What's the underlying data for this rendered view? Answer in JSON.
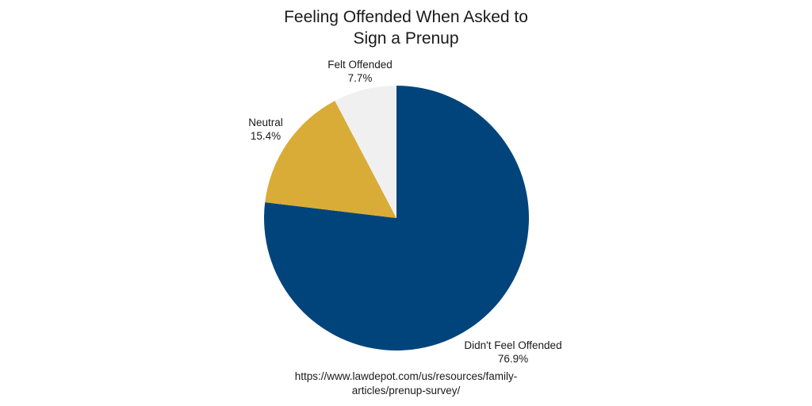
{
  "chart_data": {
    "type": "pie",
    "title_lines": [
      "Feeling Offended When Asked to",
      "Sign a Prenup"
    ],
    "slices": [
      {
        "label": "Didn't Feel Offended",
        "value": 76.9,
        "value_label": "76.9%",
        "color": "#01447b"
      },
      {
        "label": "Neutral",
        "value": 15.4,
        "value_label": "15.4%",
        "color": "#d9ac37"
      },
      {
        "label": "Felt Offended",
        "value": 7.7,
        "value_label": "7.7%",
        "color": "#f0f0f0"
      }
    ],
    "start_angle": "12 o'clock",
    "direction": "clockwise",
    "labels": "outside, category name above percentage",
    "legend": "none"
  },
  "source_lines": [
    "https://www.lawdepot.com/us/resources/family-",
    "articles/prenup-survey/"
  ]
}
